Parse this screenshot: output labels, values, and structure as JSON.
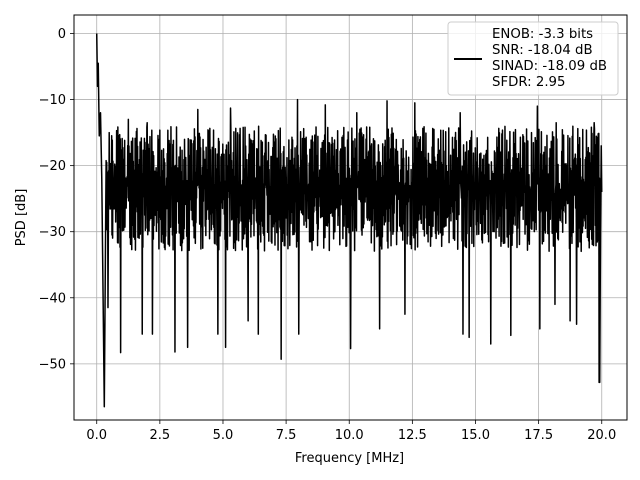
{
  "chart_data": {
    "type": "line",
    "title": "",
    "xlabel": "Frequency [MHz]",
    "ylabel": "PSD [dB]",
    "xlim": [
      -0.9,
      21.0
    ],
    "ylim": [
      -58.5,
      2.8
    ],
    "x_ticks": [
      0.0,
      2.5,
      5.0,
      7.5,
      10.0,
      12.5,
      15.0,
      17.5,
      20.0
    ],
    "x_tick_labels": [
      "0.0",
      "2.5",
      "5.0",
      "7.5",
      "10.0",
      "12.5",
      "15.0",
      "17.5",
      "20.0"
    ],
    "y_ticks": [
      0,
      -10,
      -20,
      -30,
      -40,
      -50
    ],
    "y_tick_labels": [
      "0",
      "−10",
      "−20",
      "−30",
      "−40",
      "−50"
    ],
    "grid": true,
    "line_color": "#000000",
    "legend": {
      "placement": "top-right",
      "lines": [
        "ENOB: -3.3 bits",
        "SNR: -18.04 dB",
        "SINAD: -18.09 dB",
        "SFDR: 2.95"
      ]
    },
    "series": [
      {
        "x_start": 0.0,
        "x_end": 20.0,
        "initial": [
          [
            0.0,
            0.0
          ],
          [
            0.03,
            -8.0
          ],
          [
            0.06,
            -4.5
          ],
          [
            0.1,
            -15.5
          ],
          [
            0.15,
            -12.0
          ],
          [
            0.2,
            -22.0
          ],
          [
            0.3,
            -56.5
          ],
          [
            0.36,
            -25.0
          ]
        ],
        "band_typical": [
          -33,
          -14
        ],
        "peaks": [
          [
            0.5,
            -15
          ],
          [
            1.25,
            -13
          ],
          [
            2.0,
            -13.5
          ],
          [
            4.0,
            -11.5
          ],
          [
            5.3,
            -11.3
          ],
          [
            6.4,
            -12.5
          ],
          [
            7.95,
            -10.0
          ],
          [
            9.05,
            -10.8
          ],
          [
            10.3,
            -12.0
          ],
          [
            11.5,
            -10.2
          ],
          [
            12.6,
            -10.5
          ],
          [
            14.4,
            -12.0
          ],
          [
            15.6,
            -11.0
          ],
          [
            17.45,
            -11.0
          ],
          [
            18.2,
            -13.5
          ],
          [
            19.7,
            -13.5
          ]
        ],
        "dips": [
          [
            0.45,
            -41.5
          ],
          [
            0.95,
            -48.3
          ],
          [
            1.8,
            -45.5
          ],
          [
            2.2,
            -45.5
          ],
          [
            3.1,
            -48.2
          ],
          [
            3.6,
            -47.5
          ],
          [
            4.8,
            -45.5
          ],
          [
            5.1,
            -47.5
          ],
          [
            6.0,
            -43.5
          ],
          [
            6.4,
            -45.5
          ],
          [
            7.3,
            -49.3
          ],
          [
            8.0,
            -45.5
          ],
          [
            10.05,
            -47.7
          ],
          [
            11.2,
            -44.7
          ],
          [
            12.2,
            -42.5
          ],
          [
            14.5,
            -45.5
          ],
          [
            14.75,
            -46.0
          ],
          [
            15.6,
            -47.0
          ],
          [
            16.4,
            -45.7
          ],
          [
            17.55,
            -44.7
          ],
          [
            18.15,
            -41.0
          ],
          [
            18.75,
            -43.5
          ],
          [
            19.0,
            -44.0
          ],
          [
            19.9,
            -52.8
          ]
        ],
        "tail": [
          [
            19.92,
            -52.8
          ],
          [
            19.95,
            -30.5
          ],
          [
            19.98,
            -17.0
          ],
          [
            20.0,
            -24.0
          ]
        ]
      }
    ]
  }
}
